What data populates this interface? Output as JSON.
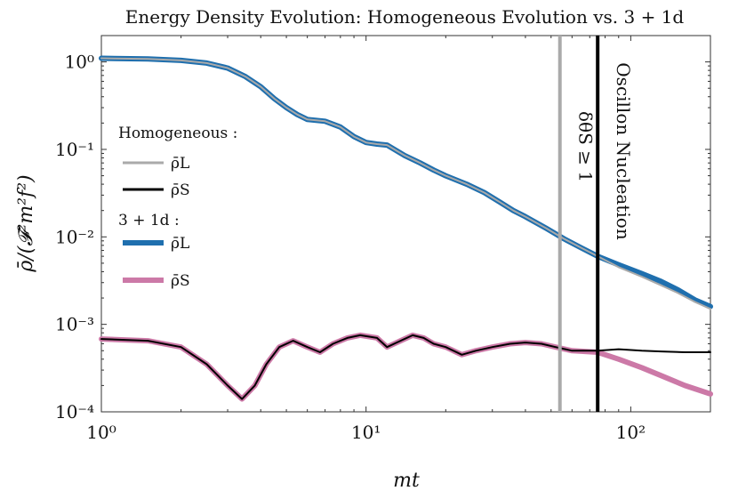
{
  "chart_data": {
    "type": "line",
    "title": "Energy Density Evolution: Homogeneous Evolution vs. 3 + 1d",
    "xlabel": "mt",
    "ylabel": "ρ̄/(𝓕²m²f²)",
    "xscale": "log",
    "yscale": "log",
    "xlim": [
      1,
      200
    ],
    "ylim": [
      0.0001,
      2
    ],
    "xticks": [
      1,
      10,
      100
    ],
    "xtick_labels": [
      "10⁰",
      "10¹",
      "10²"
    ],
    "yticks": [
      1,
      0.1,
      0.01,
      0.001,
      0.0001
    ],
    "ytick_labels": [
      "10⁰",
      "10⁻¹",
      "10⁻²",
      "10⁻³",
      "10⁻⁴"
    ],
    "legend": {
      "placement": "left",
      "groups": [
        {
          "heading": "Homogeneous :",
          "entries": [
            {
              "label": "ρ̄L",
              "color": "#aaaaaa"
            },
            {
              "label": "ρ̄S",
              "color": "#000000"
            }
          ]
        },
        {
          "heading": "3 + 1d :",
          "entries": [
            {
              "label": "ρ̄L",
              "color": "#1f6fae"
            },
            {
              "label": "ρ̄S",
              "color": "#cc79a7"
            }
          ]
        }
      ]
    },
    "vlines": [
      {
        "x": 54,
        "label": "δθS ≥ 1",
        "color": "#aaaaaa"
      },
      {
        "x": 75,
        "label": "Oscillon Nucleation",
        "color": "#000000"
      }
    ],
    "series": [
      {
        "name": "Homogeneous ρ̄L",
        "color": "#aaaaaa",
        "points": [
          [
            1,
            1.1
          ],
          [
            1.5,
            1.08
          ],
          [
            2,
            1.04
          ],
          [
            2.5,
            0.97
          ],
          [
            3,
            0.85
          ],
          [
            3.5,
            0.68
          ],
          [
            4,
            0.52
          ],
          [
            4.5,
            0.38
          ],
          [
            5,
            0.3
          ],
          [
            5.5,
            0.25
          ],
          [
            6,
            0.22
          ],
          [
            7,
            0.21
          ],
          [
            8,
            0.18
          ],
          [
            9,
            0.14
          ],
          [
            10,
            0.12
          ],
          [
            11,
            0.115
          ],
          [
            12,
            0.112
          ],
          [
            14,
            0.085
          ],
          [
            16,
            0.07
          ],
          [
            18,
            0.058
          ],
          [
            20,
            0.05
          ],
          [
            24,
            0.04
          ],
          [
            28,
            0.032
          ],
          [
            32,
            0.025
          ],
          [
            36,
            0.02
          ],
          [
            40,
            0.017
          ],
          [
            48,
            0.0125
          ],
          [
            56,
            0.0095
          ],
          [
            65,
            0.0075
          ],
          [
            75,
            0.006
          ],
          [
            90,
            0.0045
          ],
          [
            110,
            0.0035
          ],
          [
            130,
            0.0028
          ],
          [
            150,
            0.0023
          ],
          [
            175,
            0.0018
          ],
          [
            200,
            0.0015
          ]
        ]
      },
      {
        "name": "Homogeneous ρ̄S",
        "color": "#000000",
        "points": [
          [
            1,
            0.00068
          ],
          [
            1.5,
            0.00065
          ],
          [
            2,
            0.00055
          ],
          [
            2.5,
            0.00035
          ],
          [
            3,
            0.0002
          ],
          [
            3.4,
            0.00014
          ],
          [
            3.8,
            0.0002
          ],
          [
            4.2,
            0.00035
          ],
          [
            4.7,
            0.00055
          ],
          [
            5.3,
            0.00065
          ],
          [
            6,
            0.00055
          ],
          [
            6.7,
            0.00048
          ],
          [
            7.5,
            0.0006
          ],
          [
            8.5,
            0.0007
          ],
          [
            9.5,
            0.00075
          ],
          [
            11,
            0.0007
          ],
          [
            12,
            0.00055
          ],
          [
            13.5,
            0.00065
          ],
          [
            15,
            0.00075
          ],
          [
            16.5,
            0.0007
          ],
          [
            18,
            0.0006
          ],
          [
            20,
            0.00055
          ],
          [
            23,
            0.00045
          ],
          [
            26,
            0.0005
          ],
          [
            30,
            0.00055
          ],
          [
            35,
            0.0006
          ],
          [
            40,
            0.00062
          ],
          [
            46,
            0.0006
          ],
          [
            52,
            0.00055
          ],
          [
            60,
            0.0005
          ],
          [
            75,
            0.0005
          ],
          [
            90,
            0.00052
          ],
          [
            110,
            0.0005
          ],
          [
            130,
            0.00049
          ],
          [
            160,
            0.00048
          ],
          [
            200,
            0.00048
          ]
        ]
      },
      {
        "name": "3 + 1d ρ̄L",
        "color": "#1f6fae",
        "points": [
          [
            1,
            1.1
          ],
          [
            1.5,
            1.08
          ],
          [
            2,
            1.04
          ],
          [
            2.5,
            0.97
          ],
          [
            3,
            0.85
          ],
          [
            3.5,
            0.68
          ],
          [
            4,
            0.52
          ],
          [
            4.5,
            0.38
          ],
          [
            5,
            0.3
          ],
          [
            5.5,
            0.25
          ],
          [
            6,
            0.22
          ],
          [
            7,
            0.21
          ],
          [
            8,
            0.18
          ],
          [
            9,
            0.14
          ],
          [
            10,
            0.12
          ],
          [
            11,
            0.115
          ],
          [
            12,
            0.112
          ],
          [
            14,
            0.085
          ],
          [
            16,
            0.07
          ],
          [
            18,
            0.058
          ],
          [
            20,
            0.05
          ],
          [
            24,
            0.04
          ],
          [
            28,
            0.032
          ],
          [
            32,
            0.025
          ],
          [
            36,
            0.02
          ],
          [
            40,
            0.017
          ],
          [
            48,
            0.0125
          ],
          [
            56,
            0.0095
          ],
          [
            65,
            0.0075
          ],
          [
            75,
            0.006
          ],
          [
            90,
            0.0048
          ],
          [
            110,
            0.0038
          ],
          [
            130,
            0.0031
          ],
          [
            150,
            0.0025
          ],
          [
            175,
            0.0019
          ],
          [
            200,
            0.0016
          ]
        ]
      },
      {
        "name": "3 + 1d ρ̄S",
        "color": "#cc79a7",
        "points": [
          [
            1,
            0.00068
          ],
          [
            1.5,
            0.00065
          ],
          [
            2,
            0.00055
          ],
          [
            2.5,
            0.00035
          ],
          [
            3,
            0.0002
          ],
          [
            3.4,
            0.00014
          ],
          [
            3.8,
            0.0002
          ],
          [
            4.2,
            0.00035
          ],
          [
            4.7,
            0.00055
          ],
          [
            5.3,
            0.00065
          ],
          [
            6,
            0.00055
          ],
          [
            6.7,
            0.00048
          ],
          [
            7.5,
            0.0006
          ],
          [
            8.5,
            0.0007
          ],
          [
            9.5,
            0.00075
          ],
          [
            11,
            0.0007
          ],
          [
            12,
            0.00055
          ],
          [
            13.5,
            0.00065
          ],
          [
            15,
            0.00075
          ],
          [
            16.5,
            0.0007
          ],
          [
            18,
            0.0006
          ],
          [
            20,
            0.00055
          ],
          [
            23,
            0.00045
          ],
          [
            26,
            0.0005
          ],
          [
            30,
            0.00055
          ],
          [
            35,
            0.0006
          ],
          [
            40,
            0.00062
          ],
          [
            46,
            0.0006
          ],
          [
            52,
            0.00055
          ],
          [
            60,
            0.0005
          ],
          [
            75,
            0.00048
          ],
          [
            90,
            0.0004
          ],
          [
            110,
            0.00032
          ],
          [
            130,
            0.00026
          ],
          [
            160,
            0.0002
          ],
          [
            200,
            0.00016
          ]
        ]
      }
    ]
  }
}
